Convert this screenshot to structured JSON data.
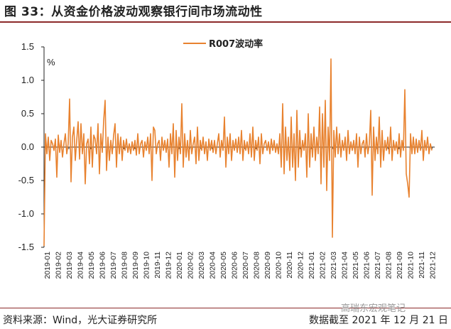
{
  "header": {
    "title": "图 33：从资金价格波动观察银行间市场流动性"
  },
  "footer": {
    "source": "资料来源：Wind，光大证券研究所",
    "date": "数据截至 2021 年 12 月 21 日",
    "watermark": "高瑞东宏观笔记"
  },
  "colors": {
    "series": "#E8822F",
    "rule": "#8c2a2a"
  },
  "chart_data": {
    "type": "line",
    "title": "",
    "xlabel": "",
    "ylabel": "",
    "unit_label": "%",
    "legend_position": "top-center",
    "grid": false,
    "ylim": [
      -1.5,
      1.5
    ],
    "yticks": [
      1.5,
      1.0,
      0.5,
      0.0,
      -0.5,
      -1.0,
      -1.5
    ],
    "ytick_labels": [
      "1.5",
      "1.0",
      "0.5",
      "0.0",
      "-0.5",
      "-1.0",
      "-1.5"
    ],
    "xticks": [
      "2019-01",
      "2019-02",
      "2019-03",
      "2019-04",
      "2019-05",
      "2019-06",
      "2019-07",
      "2019-08",
      "2019-09",
      "2019-10",
      "2019-11",
      "2019-12",
      "2020-01",
      "2020-02",
      "2020-03",
      "2020-04",
      "2020-05",
      "2020-06",
      "2020-07",
      "2020-08",
      "2020-09",
      "2020-10",
      "2020-11",
      "2020-12",
      "2021-01",
      "2021-02",
      "2021-03",
      "2021-04",
      "2021-05",
      "2021-06",
      "2021-07",
      "2021-08",
      "2021-09",
      "2021-10",
      "2021-11",
      "2021-12"
    ],
    "series": [
      {
        "name": "R007波动率",
        "x_start": "2019-01",
        "x_end": "2021-12-21",
        "values": [
          -1.48,
          0.2,
          -0.1,
          0.15,
          -0.2,
          0.1,
          0.05,
          -0.05,
          0.12,
          -0.45,
          0.18,
          -0.08,
          0.1,
          -0.15,
          0.05,
          0.2,
          -0.1,
          0.05,
          0.72,
          -0.52,
          0.15,
          0.3,
          -0.2,
          0.1,
          0.38,
          -0.18,
          0.35,
          -0.1,
          0.2,
          -0.55,
          0.05,
          0.12,
          -0.25,
          0.3,
          -0.3,
          0.18,
          0.12,
          -0.1,
          0.35,
          -0.4,
          0.2,
          -0.08,
          0.4,
          0.7,
          -0.35,
          0.15,
          -0.2,
          0.1,
          -0.1,
          0.18,
          0.35,
          -0.3,
          0.2,
          -0.1,
          0.15,
          -0.2,
          0.1,
          -0.05,
          0.12,
          -0.08,
          0.05,
          -0.1,
          0.08,
          -0.05,
          0.1,
          -0.12,
          0.2,
          -0.1,
          0.05,
          0.1,
          -0.15,
          0.08,
          -0.05,
          0.15,
          -0.1,
          0.2,
          -0.5,
          0.3,
          0.25,
          -0.1,
          0.05,
          0.1,
          -0.2,
          0.15,
          -0.05,
          0.1,
          -0.08,
          0.12,
          -0.3,
          0.2,
          -0.1,
          0.35,
          -0.45,
          0.25,
          -0.2,
          0.15,
          -0.1,
          0.65,
          -0.3,
          0.2,
          -0.15,
          0.1,
          -0.2,
          0.25,
          -0.1,
          0.05,
          0.15,
          -0.25,
          0.3,
          -0.2,
          0.1,
          -0.05,
          0.15,
          -0.1,
          0.08,
          -0.2,
          0.12,
          -0.05,
          0.1,
          -0.08,
          0.1,
          -0.1,
          0.05,
          0.2,
          -0.15,
          0.1,
          -0.05,
          0.45,
          -0.3,
          0.15,
          -0.1,
          0.2,
          -0.2,
          0.1,
          -0.05,
          0.12,
          -0.08,
          0.15,
          -0.1,
          0.25,
          -0.2,
          0.1,
          -0.05,
          0.08,
          -0.1,
          0.2,
          -0.15,
          0.3,
          -0.2,
          0.1,
          -0.05,
          0.15,
          -0.25,
          0.2,
          -0.1,
          0.05,
          0.1,
          -0.05,
          0.08,
          -0.1,
          0.12,
          -0.05,
          0.1,
          -0.08,
          0.05,
          -0.1,
          0.2,
          -0.3,
          0.65,
          -0.4,
          0.3,
          -0.2,
          0.15,
          -0.35,
          0.45,
          -0.3,
          0.2,
          -0.5,
          0.55,
          -0.3,
          0.25,
          -0.15,
          0.1,
          -0.05,
          0.2,
          -0.45,
          0.5,
          -0.3,
          0.2,
          -0.15,
          0.3,
          -0.2,
          0.15,
          -0.1,
          0.6,
          -0.55,
          0.5,
          -0.3,
          0.7,
          -0.65,
          0.3,
          -0.2,
          1.32,
          -1.35,
          0.25,
          -0.15,
          0.3,
          -0.1,
          0.2,
          -0.15,
          0.1,
          -0.05,
          0.15,
          -0.2,
          0.25,
          -0.1,
          0.08,
          -0.05,
          0.1,
          -0.1,
          0.2,
          -0.3,
          0.15,
          -0.1,
          0.05,
          0.1,
          -0.15,
          0.2,
          -0.1,
          0.05,
          0.55,
          -0.72,
          0.3,
          -0.2,
          0.15,
          -0.1,
          0.45,
          -0.3,
          0.25,
          -0.2,
          0.1,
          -0.05,
          0.15,
          -0.1,
          0.3,
          -0.2,
          0.1,
          -0.05,
          0.08,
          -0.1,
          0.2,
          -0.15,
          0.1,
          -0.05,
          0.86,
          -0.4,
          -0.55,
          -0.75,
          0.2,
          -0.1,
          0.15,
          -0.1,
          0.12,
          -0.08,
          0.1,
          -0.05,
          0.25,
          -0.2,
          0.1,
          -0.05,
          0.15,
          -0.1,
          0.05,
          -0.05
        ]
      }
    ]
  }
}
